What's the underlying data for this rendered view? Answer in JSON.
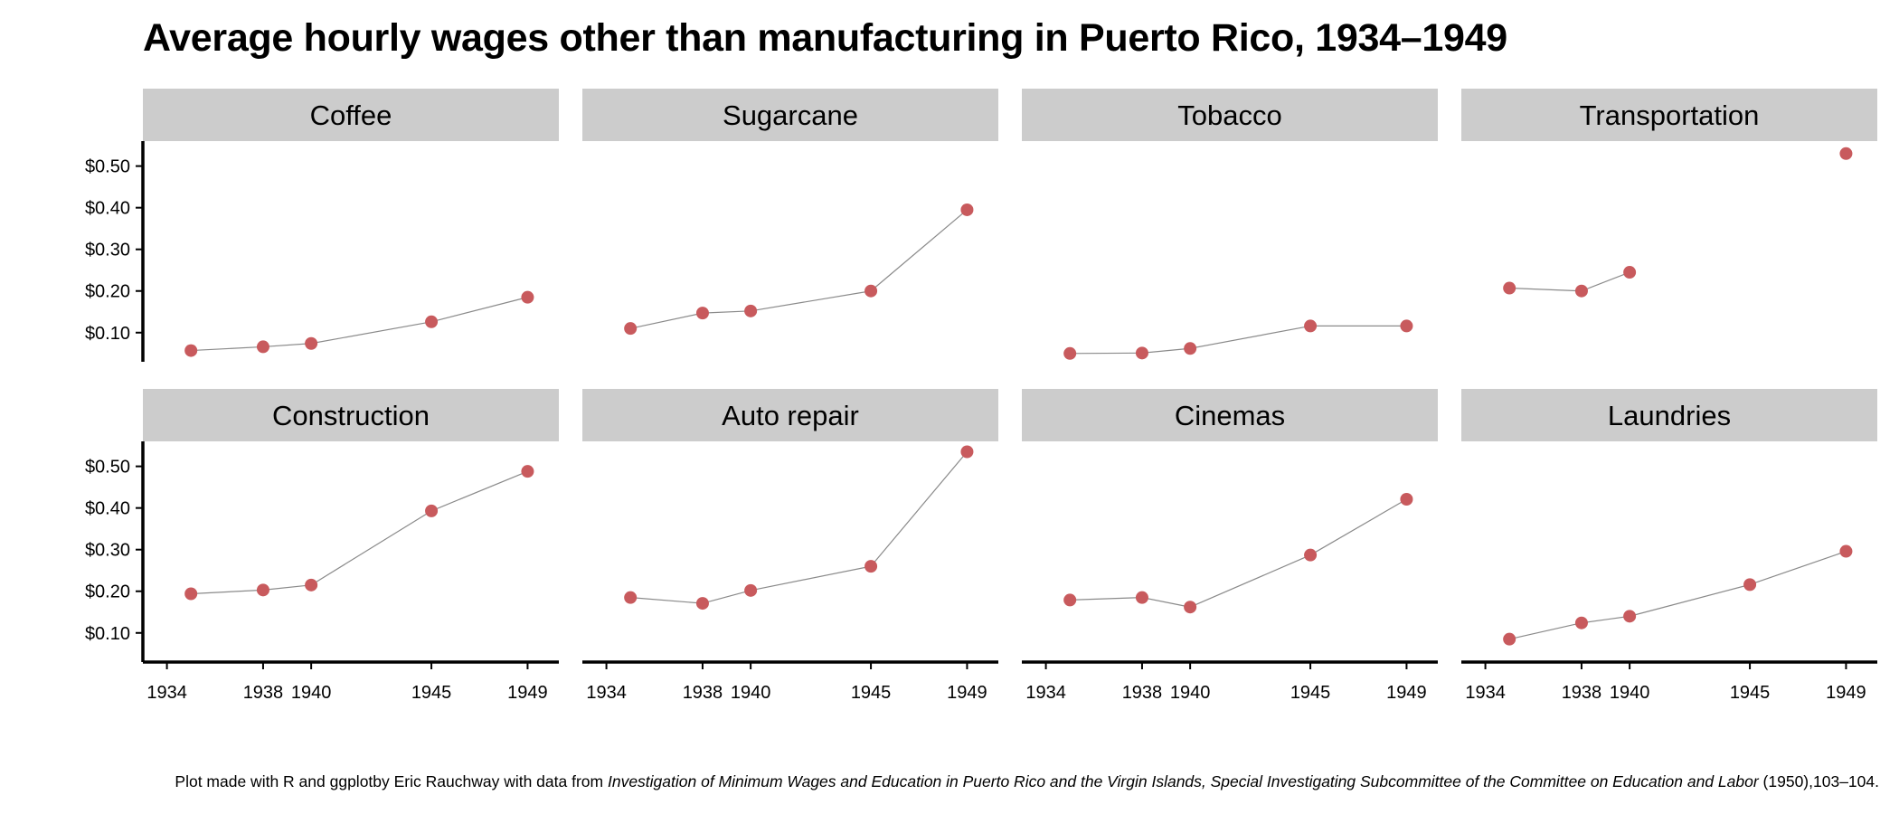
{
  "title": "Average hourly wages other than manufacturing in Puerto Rico, 1934–1949",
  "caption": {
    "prefix": "Plot made with R and ggplotby Eric Rauchway with data from ",
    "source_italic": "Investigation of Minimum Wages and Education in Puerto Rico and the Virgin Islands, Special Investigating Subcommittee of the Committee on Education and Labor",
    "suffix": " (1950),103–104."
  },
  "colors": {
    "point": "#c85a5d",
    "line": "#8a8a8a",
    "strip": "#cccccc",
    "axis": "#000000"
  },
  "chart_data": {
    "type": "line",
    "x_ticks": [
      1934,
      1938,
      1940,
      1945,
      1949
    ],
    "xlim": [
      1933,
      1950.3
    ],
    "y_ticks": [
      0.1,
      0.2,
      0.3,
      0.4,
      0.5
    ],
    "y_tick_labels": [
      "$0.10",
      "$0.20",
      "$0.30",
      "$0.40",
      "$0.50"
    ],
    "ylim": [
      0.03,
      0.56
    ],
    "grid": false,
    "series": [
      {
        "name": "Coffee",
        "x": [
          1935,
          1938,
          1940,
          1945,
          1949
        ],
        "values": [
          0.057,
          0.066,
          0.074,
          0.126,
          0.185
        ]
      },
      {
        "name": "Sugarcane",
        "x": [
          1935,
          1938,
          1940,
          1945,
          1949
        ],
        "values": [
          0.11,
          0.147,
          0.152,
          0.2,
          0.395
        ]
      },
      {
        "name": "Tobacco",
        "x": [
          1935,
          1938,
          1940,
          1945,
          1949
        ],
        "values": [
          0.05,
          0.051,
          0.062,
          0.116,
          0.116
        ]
      },
      {
        "name": "Transportation",
        "x": [
          1935,
          1938,
          1940,
          1949
        ],
        "values": [
          0.207,
          0.2,
          0.245,
          0.53
        ],
        "line_segments": [
          [
            0,
            1
          ],
          [
            1,
            2
          ]
        ]
      },
      {
        "name": "Construction",
        "x": [
          1935,
          1938,
          1940,
          1945,
          1949
        ],
        "values": [
          0.194,
          0.203,
          0.215,
          0.393,
          0.488
        ]
      },
      {
        "name": "Auto repair",
        "x": [
          1935,
          1938,
          1940,
          1945,
          1949
        ],
        "values": [
          0.185,
          0.171,
          0.202,
          0.26,
          0.535
        ]
      },
      {
        "name": "Cinemas",
        "x": [
          1935,
          1938,
          1940,
          1945,
          1949
        ],
        "values": [
          0.179,
          0.185,
          0.162,
          0.287,
          0.421
        ]
      },
      {
        "name": "Laundries",
        "x": [
          1935,
          1938,
          1940,
          1945,
          1949
        ],
        "values": [
          0.085,
          0.124,
          0.14,
          0.216,
          0.296
        ]
      }
    ]
  }
}
